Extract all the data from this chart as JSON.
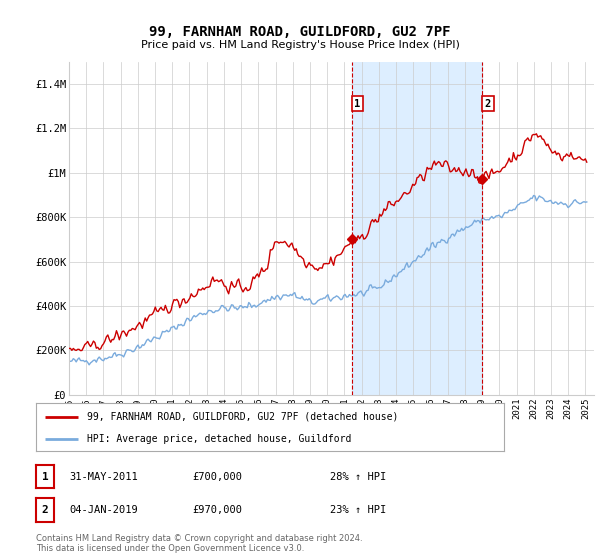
{
  "title": "99, FARNHAM ROAD, GUILDFORD, GU2 7PF",
  "subtitle": "Price paid vs. HM Land Registry's House Price Index (HPI)",
  "ylabel_ticks": [
    "£0",
    "£200K",
    "£400K",
    "£600K",
    "£800K",
    "£1M",
    "£1.2M",
    "£1.4M"
  ],
  "ylim": [
    0,
    1500000
  ],
  "xlim_start": 1995.0,
  "xlim_end": 2025.5,
  "purchase1_x": 2011.42,
  "purchase1_y": 700000,
  "purchase1_label": "1",
  "purchase2_x": 2019.01,
  "purchase2_y": 970000,
  "purchase2_label": "2",
  "red_line_color": "#cc0000",
  "blue_line_color": "#7aabdd",
  "shaded_color": "#ddeeff",
  "dashed_vline_color": "#cc0000",
  "background_color": "#ffffff",
  "grid_color": "#cccccc",
  "legend1_label": "99, FARNHAM ROAD, GUILDFORD, GU2 7PF (detached house)",
  "legend2_label": "HPI: Average price, detached house, Guildford",
  "table_row1": [
    "1",
    "31-MAY-2011",
    "£700,000",
    "28% ↑ HPI"
  ],
  "table_row2": [
    "2",
    "04-JAN-2019",
    "£970,000",
    "23% ↑ HPI"
  ],
  "footnote": "Contains HM Land Registry data © Crown copyright and database right 2024.\nThis data is licensed under the Open Government Licence v3.0.",
  "tick_years": [
    1995,
    1996,
    1997,
    1998,
    1999,
    2000,
    2001,
    2002,
    2003,
    2004,
    2005,
    2006,
    2007,
    2008,
    2009,
    2010,
    2011,
    2012,
    2013,
    2014,
    2015,
    2016,
    2017,
    2018,
    2019,
    2020,
    2021,
    2022,
    2023,
    2024,
    2025
  ]
}
